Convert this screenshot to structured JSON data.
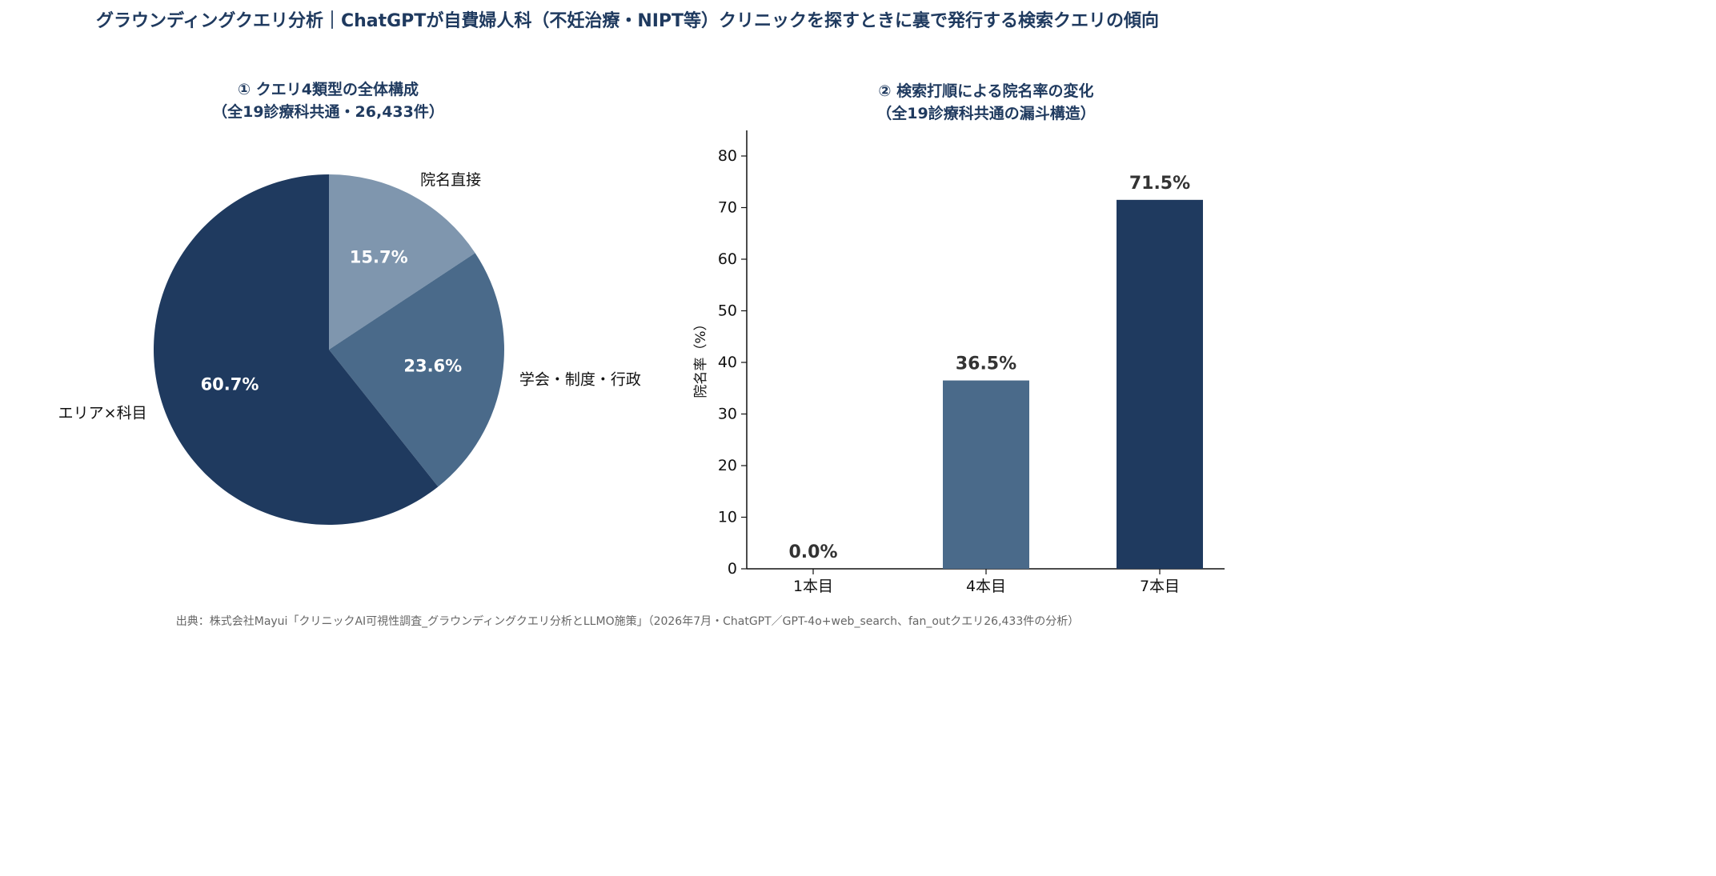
{
  "title": "グラウンディングクエリ分析｜ChatGPTが自費婦人科（不妊治療・NIPT等）クリニックを探すときに裏で発行する検索クエリの傾向",
  "source": "出典：株式会社Mayui「クリニックAI可視性調査_グラウンディングクエリ分析とLLMO施策」（2026年7月・ChatGPT／GPT-4o+web_search、fan_outクエリ26,433件の分析）",
  "colors": {
    "dark": "#1f3a5f",
    "mid": "#4a6a8a",
    "light": "#7f96ae"
  },
  "chart_data": [
    {
      "type": "pie",
      "title_line1": "① クエリ4類型の全体構成",
      "title_line2": "（全19診療科共通・26,433件）",
      "slices": [
        {
          "label": "院名直接",
          "value": 15.7,
          "value_label": "15.7%",
          "color": "#7f96ae"
        },
        {
          "label": "学会・制度・行政",
          "value": 23.6,
          "value_label": "23.6%",
          "color": "#4a6a8a"
        },
        {
          "label": "エリア×科目",
          "value": 60.7,
          "value_label": "60.7%",
          "color": "#1f3a5f"
        }
      ]
    },
    {
      "type": "bar",
      "title_line1": "② 検索打順による院名率の変化",
      "title_line2": "（全19診療科共通の漏斗構造）",
      "ylabel": "院名率（%）",
      "ylim": [
        0,
        85
      ],
      "yticks": [
        0,
        10,
        20,
        30,
        40,
        50,
        60,
        70,
        80
      ],
      "categories": [
        "1本目",
        "4本目",
        "7本目"
      ],
      "values": [
        0.0,
        36.5,
        71.5
      ],
      "value_labels": [
        "0.0%",
        "36.5%",
        "71.5%"
      ],
      "bar_colors": [
        "#4a6a8a",
        "#4a6a8a",
        "#1f3a5f"
      ]
    }
  ]
}
